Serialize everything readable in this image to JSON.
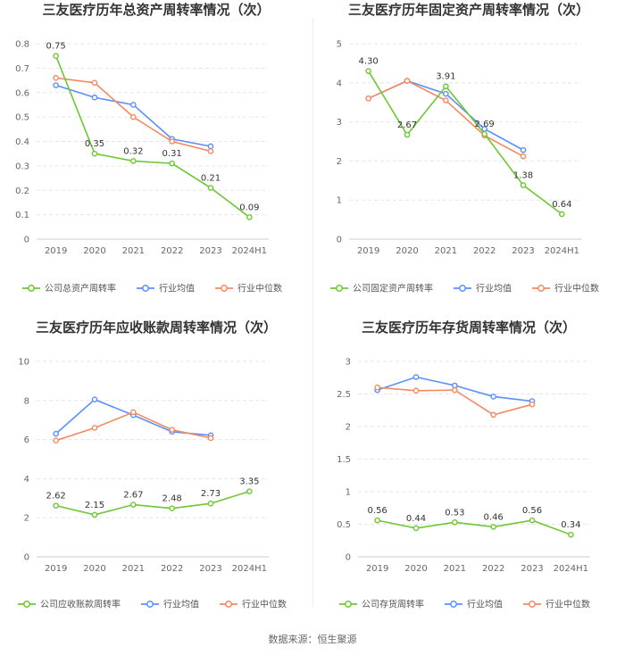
{
  "footer": {
    "source": "数据来源：恒生聚源"
  },
  "colors": {
    "company": "#6cc832",
    "avg": "#5b8ff9",
    "median": "#f4895f"
  },
  "chart_data": [
    {
      "type": "line",
      "title": "三友医疗历年总资产周转率情况（次）",
      "categories": [
        "2019",
        "2020",
        "2021",
        "2022",
        "2023",
        "2024H1"
      ],
      "ylim": [
        0,
        0.8
      ],
      "yticks": [
        "0",
        "0.1",
        "0.2",
        "0.3",
        "0.4",
        "0.5",
        "0.6",
        "0.7",
        "0.8"
      ],
      "series": [
        {
          "name": "公司总资产周转率",
          "values": [
            0.75,
            0.35,
            0.32,
            0.31,
            0.21,
            0.09
          ],
          "labels": [
            "0.75",
            "0.35",
            "0.32",
            "0.31",
            "0.21",
            "0.09"
          ]
        },
        {
          "name": "行业均值",
          "values": [
            0.63,
            0.58,
            0.55,
            0.41,
            0.38,
            null
          ]
        },
        {
          "name": "行业中位数",
          "values": [
            0.66,
            0.64,
            0.5,
            0.4,
            0.36,
            null
          ]
        }
      ]
    },
    {
      "type": "line",
      "title": "三友医疗历年固定资产周转率情况（次）",
      "categories": [
        "2019",
        "2020",
        "2021",
        "2022",
        "2023",
        "2024H1"
      ],
      "ylim": [
        0,
        5
      ],
      "yticks": [
        "0",
        "1",
        "2",
        "3",
        "4",
        "5"
      ],
      "series": [
        {
          "name": "公司固定资产周转率",
          "values": [
            4.3,
            2.67,
            3.91,
            2.69,
            1.38,
            0.64
          ],
          "labels": [
            "4.30",
            "2.67",
            "3.91",
            "2.69",
            "1.38",
            "0.64"
          ]
        },
        {
          "name": "行业均值",
          "values": [
            3.6,
            4.05,
            3.72,
            2.82,
            2.28,
            null
          ]
        },
        {
          "name": "行业中位数",
          "values": [
            3.6,
            4.05,
            3.55,
            2.65,
            2.12,
            null
          ]
        }
      ]
    },
    {
      "type": "line",
      "title": "三友医疗历年应收账款周转率情况（次）",
      "categories": [
        "2019",
        "2020",
        "2021",
        "2022",
        "2023",
        "2024H1"
      ],
      "ylim": [
        0,
        10
      ],
      "yticks": [
        "0",
        "2",
        "4",
        "6",
        "8",
        "10"
      ],
      "series": [
        {
          "name": "公司应收账款周转率",
          "values": [
            2.62,
            2.15,
            2.67,
            2.48,
            2.73,
            3.35
          ],
          "labels": [
            "2.62",
            "2.15",
            "2.67",
            "2.48",
            "2.73",
            "3.35"
          ]
        },
        {
          "name": "行业均值",
          "values": [
            6.3,
            8.05,
            7.25,
            6.4,
            6.22,
            null
          ]
        },
        {
          "name": "行业中位数",
          "values": [
            5.95,
            6.6,
            7.4,
            6.5,
            6.08,
            null
          ]
        }
      ]
    },
    {
      "type": "line",
      "title": "三友医疗历年存货周转率情况（次）",
      "categories": [
        "2019",
        "2020",
        "2021",
        "2022",
        "2023",
        "2024H1"
      ],
      "ylim": [
        0,
        3
      ],
      "yticks": [
        "0",
        "0.5",
        "1",
        "1.5",
        "2",
        "2.5",
        "3"
      ],
      "series": [
        {
          "name": "公司存货周转率",
          "values": [
            0.56,
            0.44,
            0.53,
            0.46,
            0.56,
            0.34
          ],
          "labels": [
            "0.56",
            "0.44",
            "0.53",
            "0.46",
            "0.56",
            "0.34"
          ]
        },
        {
          "name": "行业均值",
          "values": [
            2.56,
            2.76,
            2.63,
            2.46,
            2.39,
            null
          ]
        },
        {
          "name": "行业中位数",
          "values": [
            2.6,
            2.55,
            2.56,
            2.18,
            2.34,
            null
          ]
        }
      ]
    }
  ]
}
